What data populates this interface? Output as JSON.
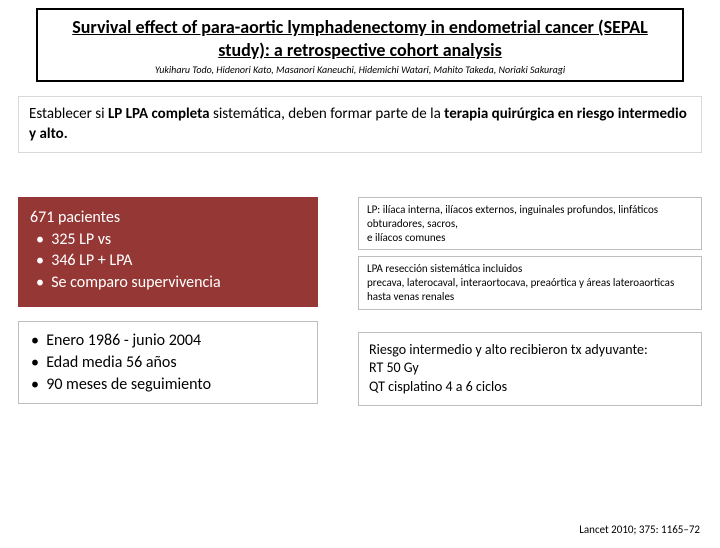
{
  "title": {
    "main": "Survival effect of para-aortic lymphadenectomy in endometrial cancer (SEPAL study): a retrospective cohort analysis",
    "authors": "Yukiharu Todo, Hidenori Kato, Masanori Kaneuchi, Hidemichi Watari, Mahito Takeda, Noriaki Sakuragi"
  },
  "objective": {
    "prefix": "Establecer si ",
    "bold1": "LP LPA completa",
    "mid": " sistemática, deben formar parte de la ",
    "bold2": "terapia quirúrgica en riesgo intermedio y alto."
  },
  "patients": {
    "header": "671 pacientes",
    "b1": "325 LP  vs",
    "b2": "346 LP + LPA",
    "b3": "Se comparo supervivencia"
  },
  "period": {
    "b1": "Enero 1986 -  junio 2004",
    "b2": "Edad media 56 años",
    "b3": "90 meses de seguimiento"
  },
  "lp_def": {
    "line1": "LP: ilíaca interna, ilíacos externos, inguinales profundos, linfáticos obturadores, sacros,",
    "line2": " e ilíacos comunes"
  },
  "lpa_def": {
    "line1": "LPA resección sistemática incluidos",
    "line2": "precava, laterocaval, interaortocava, preaórtica y áreas lateroaorticas hasta venas renales"
  },
  "risk": {
    "l1": "Riesgo intermedio y alto recibieron tx adyuvante:",
    "l2": "RT 50 Gy",
    "l3": "QT cisplatino 4 a 6 ciclos"
  },
  "citation": "Lancet 2010; 375: 1165–72",
  "colors": {
    "red_box_bg": "#953735",
    "border_gray": "#bfbfbf"
  }
}
